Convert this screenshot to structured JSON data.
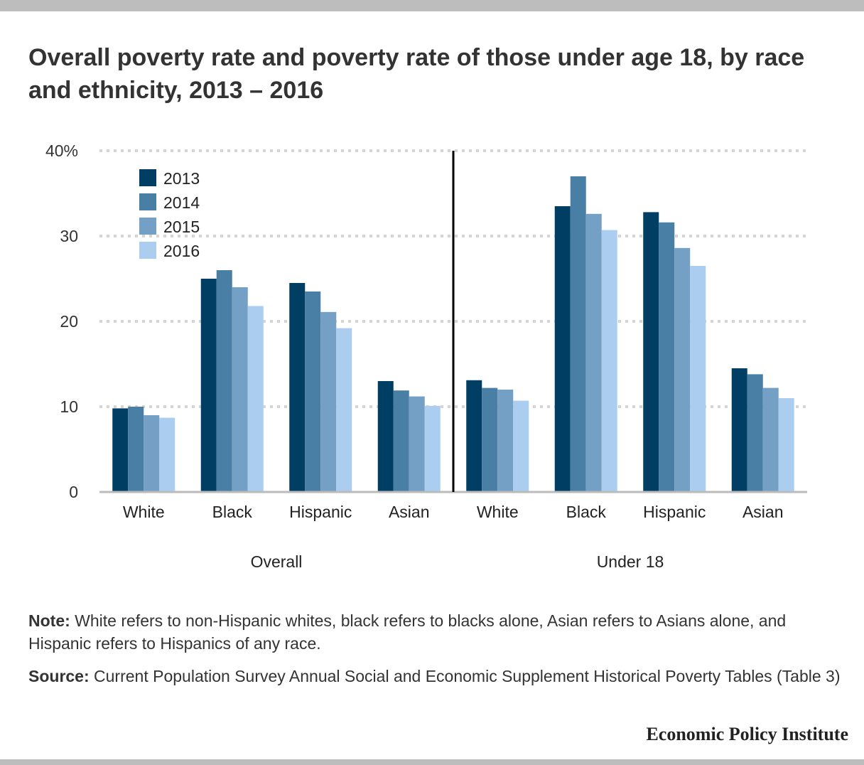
{
  "header": {
    "title": "Overall poverty rate and poverty rate of those under age 18, by race and ethnicity, 2013 – 2016"
  },
  "chart_data": {
    "type": "bar",
    "title": "Overall poverty rate and poverty rate of those under age 18, by race and ethnicity, 2013 – 2016",
    "xlabel": "",
    "ylabel": "",
    "ylim": [
      0,
      40
    ],
    "yticks": [
      0,
      10,
      20,
      30,
      40
    ],
    "ytick_labels": [
      "0",
      "10",
      "20",
      "30",
      "40%"
    ],
    "grid": true,
    "legend_position": "top-left",
    "groups": [
      {
        "label": "Overall",
        "categories": [
          "White",
          "Black",
          "Hispanic",
          "Asian"
        ]
      },
      {
        "label": "Under 18",
        "categories": [
          "White",
          "Black",
          "Hispanic",
          "Asian"
        ]
      }
    ],
    "categories": [
      "White",
      "Black",
      "Hispanic",
      "Asian",
      "White",
      "Black",
      "Hispanic",
      "Asian"
    ],
    "series": [
      {
        "name": "2013",
        "color": "#003e63",
        "values": [
          9.8,
          25.0,
          24.5,
          13.0,
          13.1,
          33.5,
          32.8,
          14.5
        ]
      },
      {
        "name": "2014",
        "color": "#4a7fa5",
        "values": [
          10.0,
          26.0,
          23.5,
          11.9,
          12.2,
          37.0,
          31.6,
          13.8
        ]
      },
      {
        "name": "2015",
        "color": "#73a0c4",
        "values": [
          9.0,
          24.0,
          21.1,
          11.2,
          12.0,
          32.6,
          28.6,
          12.2
        ]
      },
      {
        "name": "2016",
        "color": "#abcdef",
        "values": [
          8.7,
          21.8,
          19.2,
          10.1,
          10.7,
          30.7,
          26.5,
          11.0
        ]
      }
    ]
  },
  "footer": {
    "note_label": "Note:",
    "note_text": " White refers to non-Hispanic whites, black refers to blacks alone, Asian refers to Asians alone, and Hispanic refers to Hispanics of any race.",
    "source_label": "Source:",
    "source_text": " Current Population Survey Annual Social and Economic Supplement Historical Poverty Tables (Table 3)",
    "brand": "Economic Policy Institute"
  }
}
